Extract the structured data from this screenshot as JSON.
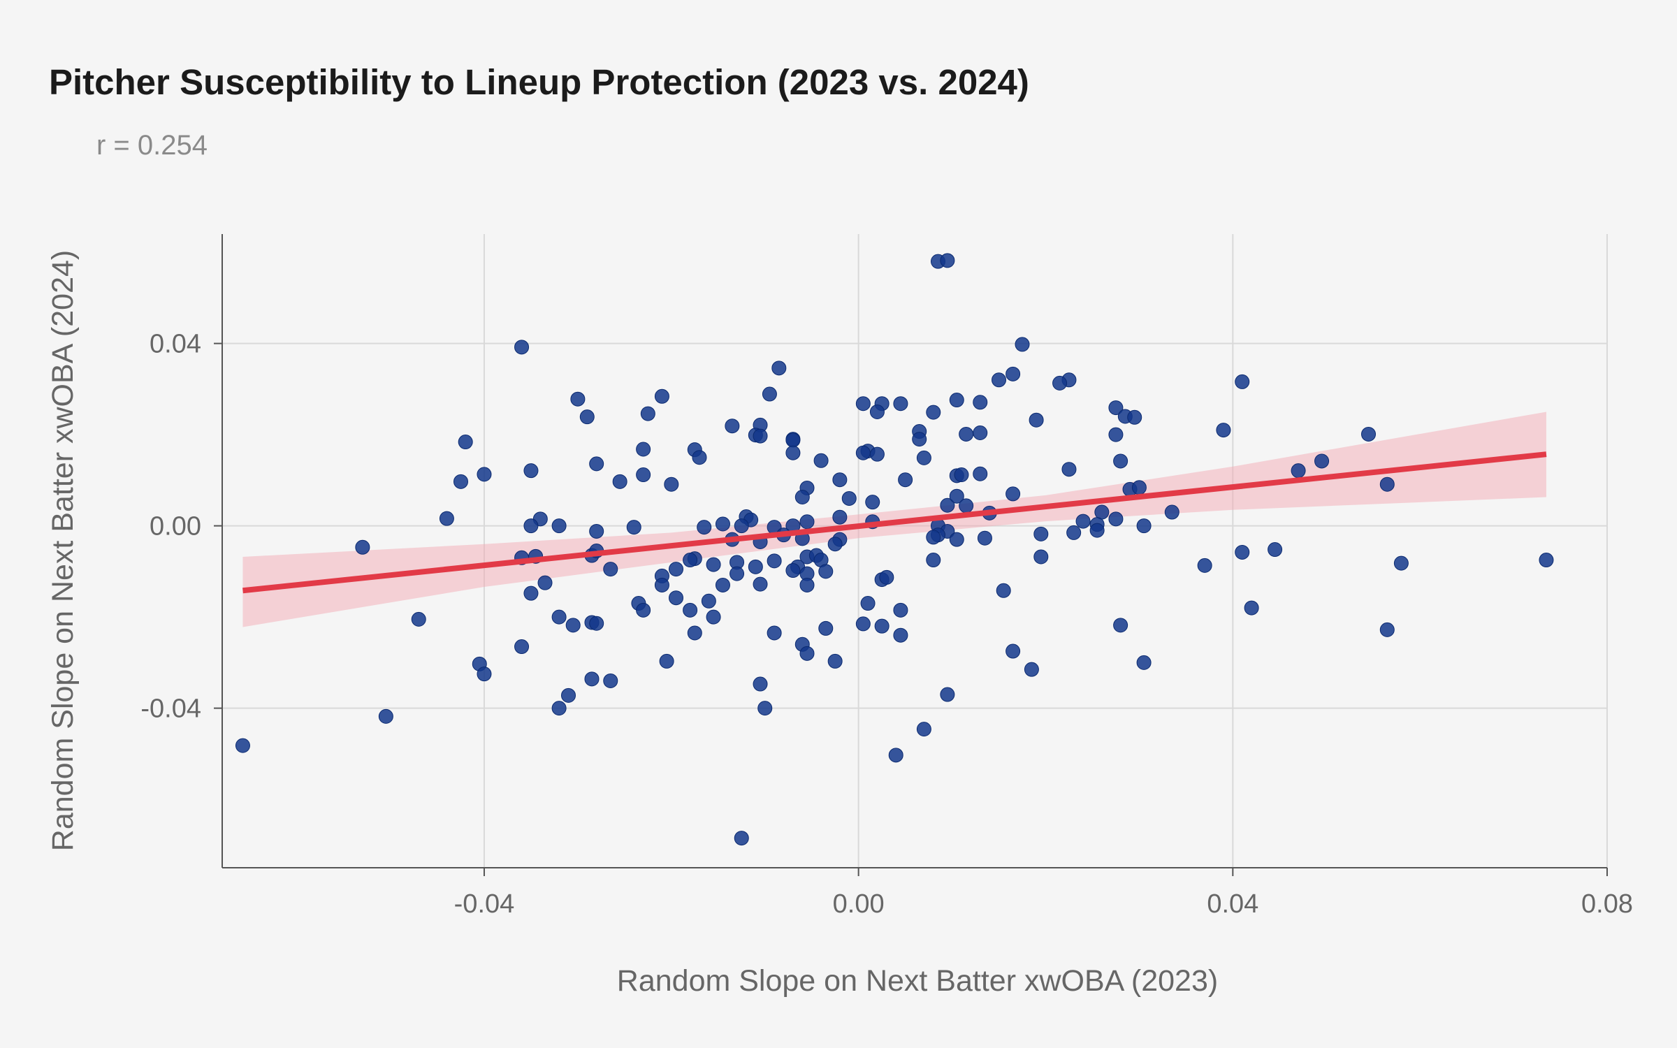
{
  "chart": {
    "title": "Pitcher Susceptibility to Lineup Protection (2023 vs. 2024)",
    "subtitle": "r = 0.254"
  },
  "chart_data": {
    "type": "scatter",
    "title": "Pitcher Susceptibility to Lineup Protection (2023 vs. 2024)",
    "subtitle": "r = 0.254",
    "xlabel": "Random Slope on Next Batter xwOBA (2023)",
    "ylabel": "Random Slope on Next Batter xwOBA (2024)",
    "xlim": [
      -0.068,
      0.08
    ],
    "ylim": [
      -0.075,
      0.064
    ],
    "xticks": [
      -0.04,
      0.0,
      0.04,
      0.08
    ],
    "xtick_labels": [
      "-0.04",
      "0.00",
      "0.04",
      "0.08"
    ],
    "yticks": [
      -0.04,
      0.0,
      0.04
    ],
    "ytick_labels": [
      "-0.04",
      "0.00",
      "0.04"
    ],
    "grid": true,
    "colors": {
      "points": "#13378b",
      "fit_line": "#e23a47",
      "confidence_band": "#f5a3b0",
      "grid": "#d9d9d9",
      "axis": "#555555",
      "background": "#f5f5f5"
    },
    "trend_line": {
      "x": [
        -0.0658,
        0.0735
      ],
      "y": [
        -0.0142,
        0.0157
      ]
    },
    "confidence_band": {
      "x": [
        -0.0658,
        -0.04,
        -0.02,
        0.0,
        0.02,
        0.04,
        0.0735
      ],
      "lower": [
        -0.0222,
        -0.0134,
        -0.008,
        -0.0027,
        0.001,
        0.0035,
        0.0063
      ],
      "upper": [
        -0.0068,
        -0.004,
        -0.0015,
        0.0025,
        0.0067,
        0.013,
        0.025
      ]
    },
    "points": [
      [
        0.0085,
        0.058
      ],
      [
        0.0095,
        0.0582
      ],
      [
        -0.036,
        0.0392
      ],
      [
        0.0175,
        0.0398
      ],
      [
        -0.0085,
        0.0346
      ],
      [
        0.0165,
        0.0333
      ],
      [
        0.015,
        0.032
      ],
      [
        0.0225,
        0.032
      ],
      [
        0.0215,
        0.0313
      ],
      [
        0.041,
        0.0316
      ],
      [
        -0.03,
        0.0278
      ],
      [
        -0.0095,
        0.0289
      ],
      [
        -0.021,
        0.0284
      ],
      [
        0.0105,
        0.0276
      ],
      [
        0.0005,
        0.0268
      ],
      [
        0.0025,
        0.0268
      ],
      [
        0.0045,
        0.0268
      ],
      [
        0.013,
        0.0271
      ],
      [
        -0.0225,
        0.0246
      ],
      [
        -0.029,
        0.0239
      ],
      [
        0.002,
        0.025
      ],
      [
        0.008,
        0.0249
      ],
      [
        0.0275,
        0.0259
      ],
      [
        0.0285,
        0.024
      ],
      [
        0.0295,
        0.0238
      ],
      [
        0.019,
        0.0232
      ],
      [
        -0.0135,
        0.0219
      ],
      [
        -0.0105,
        0.0221
      ],
      [
        -0.011,
        0.0199
      ],
      [
        -0.0105,
        0.0197
      ],
      [
        0.0065,
        0.0207
      ],
      [
        0.0065,
        0.019
      ],
      [
        0.0115,
        0.0201
      ],
      [
        0.013,
        0.0204
      ],
      [
        0.0275,
        0.02
      ],
      [
        0.039,
        0.021
      ],
      [
        0.0545,
        0.0201
      ],
      [
        -0.042,
        0.0184
      ],
      [
        -0.007,
        0.019
      ],
      [
        -0.007,
        0.0188
      ],
      [
        -0.023,
        0.0168
      ],
      [
        -0.0175,
        0.0167
      ],
      [
        0.001,
        0.0164
      ],
      [
        0.0005,
        0.016
      ],
      [
        0.002,
        0.0157
      ],
      [
        -0.007,
        0.016
      ],
      [
        -0.017,
        0.015
      ],
      [
        -0.004,
        0.0143
      ],
      [
        0.007,
        0.0149
      ],
      [
        0.028,
        0.0142
      ],
      [
        -0.028,
        0.0136
      ],
      [
        -0.035,
        0.0121
      ],
      [
        -0.04,
        0.0113
      ],
      [
        -0.023,
        0.0112
      ],
      [
        0.0105,
        0.011
      ],
      [
        0.011,
        0.0112
      ],
      [
        0.013,
        0.0114
      ],
      [
        0.0225,
        0.0124
      ],
      [
        0.047,
        0.0121
      ],
      [
        0.0495,
        0.0142
      ],
      [
        -0.0425,
        0.0097
      ],
      [
        -0.0255,
        0.0097
      ],
      [
        -0.02,
        0.0091
      ],
      [
        -0.002,
        0.0101
      ],
      [
        0.005,
        0.0101
      ],
      [
        -0.0055,
        0.0083
      ],
      [
        0.0165,
        0.007
      ],
      [
        0.029,
        0.008
      ],
      [
        0.03,
        0.0084
      ],
      [
        0.0565,
        0.0091
      ],
      [
        -0.006,
        0.0063
      ],
      [
        -0.001,
        0.006
      ],
      [
        0.0015,
        0.0052
      ],
      [
        0.0095,
        0.0045
      ],
      [
        0.0105,
        0.0065
      ],
      [
        0.0115,
        0.0044
      ],
      [
        0.014,
        0.0028
      ],
      [
        0.026,
        0.003
      ],
      [
        0.0335,
        0.003
      ],
      [
        -0.044,
        0.0016
      ],
      [
        -0.034,
        0.0015
      ],
      [
        -0.012,
        0.002
      ],
      [
        -0.0115,
        0.0013
      ],
      [
        -0.0055,
        0.0009
      ],
      [
        -0.002,
        0.0019
      ],
      [
        0.0015,
        0.0009
      ],
      [
        0.0085,
        0.0
      ],
      [
        0.0095,
        -0.0012
      ],
      [
        0.024,
        0.001
      ],
      [
        0.0255,
        0.0003
      ],
      [
        0.0275,
        0.0015
      ],
      [
        -0.035,
        0.0
      ],
      [
        -0.032,
        0.0
      ],
      [
        -0.028,
        -0.0012
      ],
      [
        -0.024,
        -0.0003
      ],
      [
        -0.0165,
        -0.0003
      ],
      [
        -0.0145,
        0.0004
      ],
      [
        -0.0125,
        0.0
      ],
      [
        -0.009,
        -0.0003
      ],
      [
        -0.007,
        0.0
      ],
      [
        0.0195,
        -0.0018
      ],
      [
        0.023,
        -0.0015
      ],
      [
        0.0255,
        -0.001
      ],
      [
        0.0305,
        0.0
      ],
      [
        0.0085,
        -0.002
      ],
      [
        0.0135,
        -0.0027
      ],
      [
        -0.053,
        -0.0047
      ],
      [
        -0.036,
        -0.007
      ],
      [
        -0.0345,
        -0.0067
      ],
      [
        -0.0285,
        -0.0065
      ],
      [
        -0.028,
        -0.0055
      ],
      [
        -0.0135,
        -0.003
      ],
      [
        -0.0105,
        -0.0035
      ],
      [
        -0.008,
        -0.002
      ],
      [
        -0.006,
        -0.0028
      ],
      [
        -0.002,
        -0.003
      ],
      [
        -0.0025,
        -0.004
      ],
      [
        0.008,
        -0.0025
      ],
      [
        0.0105,
        -0.003
      ],
      [
        0.0195,
        -0.0068
      ],
      [
        0.041,
        -0.0058
      ],
      [
        0.0445,
        -0.0052
      ],
      [
        0.058,
        -0.0082
      ],
      [
        0.0735,
        -0.0075
      ],
      [
        -0.0265,
        -0.0095
      ],
      [
        -0.0175,
        -0.0072
      ],
      [
        -0.0155,
        -0.0085
      ],
      [
        -0.013,
        -0.008
      ],
      [
        -0.011,
        -0.009
      ],
      [
        -0.009,
        -0.0077
      ],
      [
        -0.0065,
        -0.009
      ],
      [
        -0.0055,
        -0.0068
      ],
      [
        -0.0045,
        -0.0065
      ],
      [
        -0.004,
        -0.0075
      ],
      [
        -0.0035,
        -0.01
      ],
      [
        0.008,
        -0.0075
      ],
      [
        0.037,
        -0.0087
      ],
      [
        -0.035,
        -0.0148
      ],
      [
        -0.0335,
        -0.0125
      ],
      [
        -0.021,
        -0.011
      ],
      [
        -0.021,
        -0.013
      ],
      [
        -0.0195,
        -0.0095
      ],
      [
        -0.018,
        -0.0075
      ],
      [
        -0.0145,
        -0.013
      ],
      [
        -0.013,
        -0.0105
      ],
      [
        -0.0105,
        -0.0128
      ],
      [
        -0.007,
        -0.0098
      ],
      [
        -0.0055,
        -0.0105
      ],
      [
        -0.0055,
        -0.013
      ],
      [
        0.0025,
        -0.0118
      ],
      [
        0.003,
        -0.0113
      ],
      [
        0.0155,
        -0.0142
      ],
      [
        -0.047,
        -0.0205
      ],
      [
        -0.032,
        -0.02
      ],
      [
        -0.0305,
        -0.0218
      ],
      [
        -0.0285,
        -0.0212
      ],
      [
        -0.028,
        -0.0214
      ],
      [
        -0.0235,
        -0.017
      ],
      [
        -0.023,
        -0.0185
      ],
      [
        -0.0195,
        -0.0158
      ],
      [
        -0.018,
        -0.0185
      ],
      [
        -0.016,
        -0.0165
      ],
      [
        -0.0155,
        -0.02
      ],
      [
        0.001,
        -0.017
      ],
      [
        0.0045,
        -0.0185
      ],
      [
        0.042,
        -0.018
      ],
      [
        -0.0175,
        -0.0235
      ],
      [
        -0.009,
        -0.0235
      ],
      [
        -0.0035,
        -0.0225
      ],
      [
        0.0005,
        -0.0215
      ],
      [
        0.0025,
        -0.022
      ],
      [
        0.0045,
        -0.024
      ],
      [
        0.028,
        -0.0218
      ],
      [
        0.0565,
        -0.0228
      ],
      [
        -0.036,
        -0.0265
      ],
      [
        -0.006,
        -0.026
      ],
      [
        -0.0055,
        -0.028
      ],
      [
        -0.0025,
        -0.0297
      ],
      [
        0.0165,
        -0.0275
      ],
      [
        0.0185,
        -0.0315
      ],
      [
        -0.0205,
        -0.0297
      ],
      [
        -0.0405,
        -0.0303
      ],
      [
        -0.04,
        -0.0325
      ],
      [
        0.0305,
        -0.03
      ],
      [
        -0.0285,
        -0.0336
      ],
      [
        -0.0265,
        -0.034
      ],
      [
        -0.0105,
        -0.0347
      ],
      [
        -0.031,
        -0.0372
      ],
      [
        -0.032,
        -0.04
      ],
      [
        -0.01,
        -0.04
      ],
      [
        0.0095,
        -0.037
      ],
      [
        -0.0505,
        -0.0418
      ],
      [
        0.007,
        -0.0446
      ],
      [
        -0.0658,
        -0.0482
      ],
      [
        0.004,
        -0.0503
      ],
      [
        -0.0125,
        -0.0685
      ]
    ]
  }
}
